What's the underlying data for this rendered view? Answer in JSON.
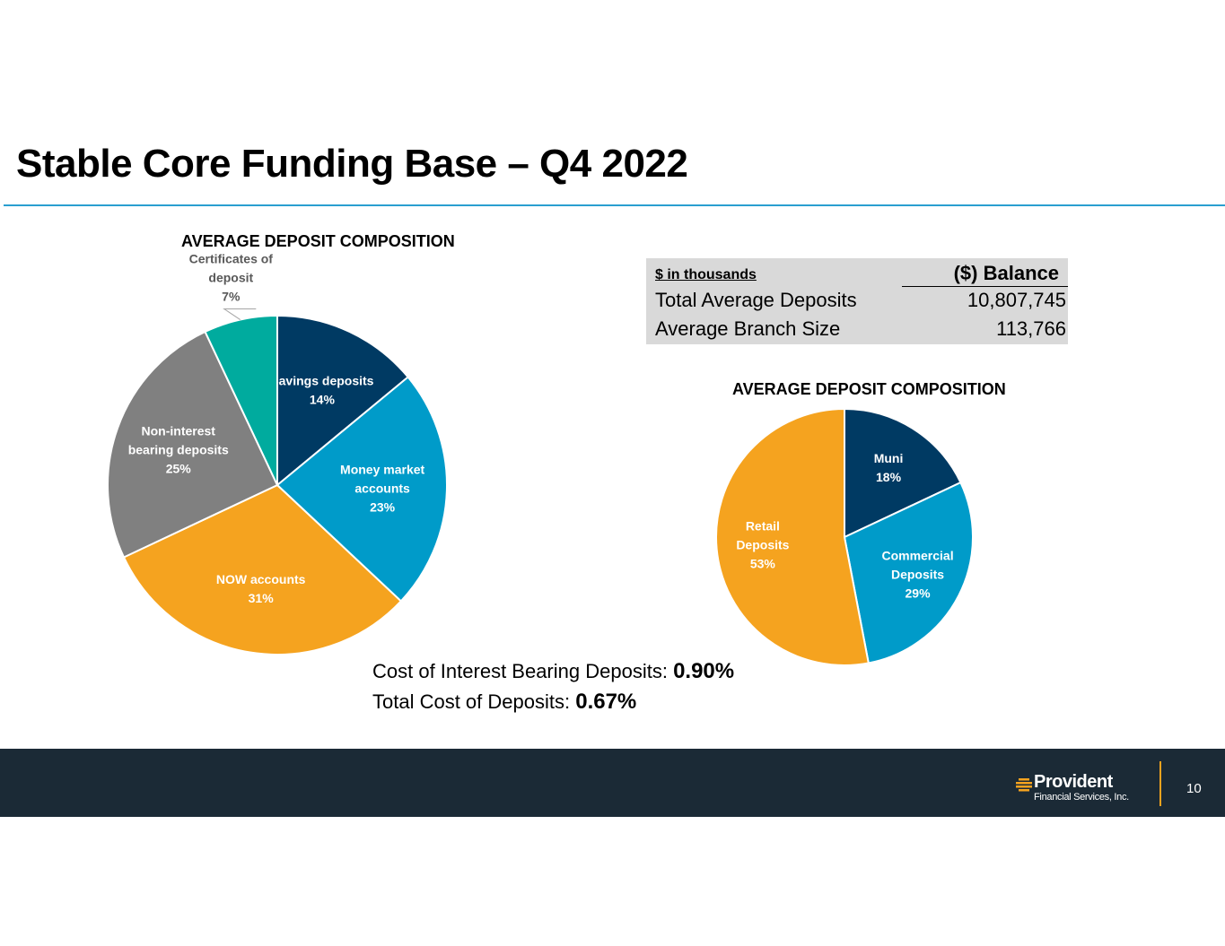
{
  "slide": {
    "title": "Stable Core Funding Base – Q4 2022",
    "page_number": "10",
    "logo_name": "Provident",
    "logo_sub": "Financial Services, Inc."
  },
  "table": {
    "header_left": "$ in thousands",
    "header_right": "($) Balance",
    "rows": [
      {
        "label": "Total Average Deposits",
        "value": "10,807,745"
      },
      {
        "label": "Average Branch Size",
        "value": "113,766"
      }
    ]
  },
  "costs": [
    {
      "label": "Cost of Interest Bearing Deposits: ",
      "value": "0.90%"
    },
    {
      "label": "Total Cost of Deposits: ",
      "value": "0.67%"
    }
  ],
  "chart_data": [
    {
      "type": "pie",
      "title": "AVERAGE DEPOSIT COMPOSITION",
      "categories": [
        "Savings deposits",
        "Money market accounts",
        "NOW accounts",
        "Non-interest bearing deposits",
        "Certificates of deposit"
      ],
      "values": [
        14,
        23,
        31,
        25,
        7
      ],
      "value_labels": [
        "14%",
        "23%",
        "31%",
        "25%",
        "7%"
      ],
      "colors": [
        "#003a63",
        "#009bc9",
        "#f5a31f",
        "#808080",
        "#00ab9e"
      ],
      "label_lines": [
        [
          "Savings deposits"
        ],
        [
          "Money market",
          "accounts"
        ],
        [
          "NOW accounts"
        ],
        [
          "Non-interest",
          "bearing deposits"
        ],
        [
          "Certificates of",
          "deposit"
        ]
      ],
      "legend": "none"
    },
    {
      "type": "pie",
      "title": "AVERAGE DEPOSIT COMPOSITION",
      "categories": [
        "Muni",
        "Commercial Deposits",
        "Retail Deposits"
      ],
      "values": [
        18,
        29,
        53
      ],
      "value_labels": [
        "18%",
        "29%",
        "53%"
      ],
      "colors": [
        "#003a63",
        "#009bc9",
        "#f5a31f"
      ],
      "label_lines": [
        [
          "Muni"
        ],
        [
          "Commercial",
          "Deposits"
        ],
        [
          "Retail",
          "Deposits"
        ]
      ],
      "legend": "none"
    }
  ]
}
